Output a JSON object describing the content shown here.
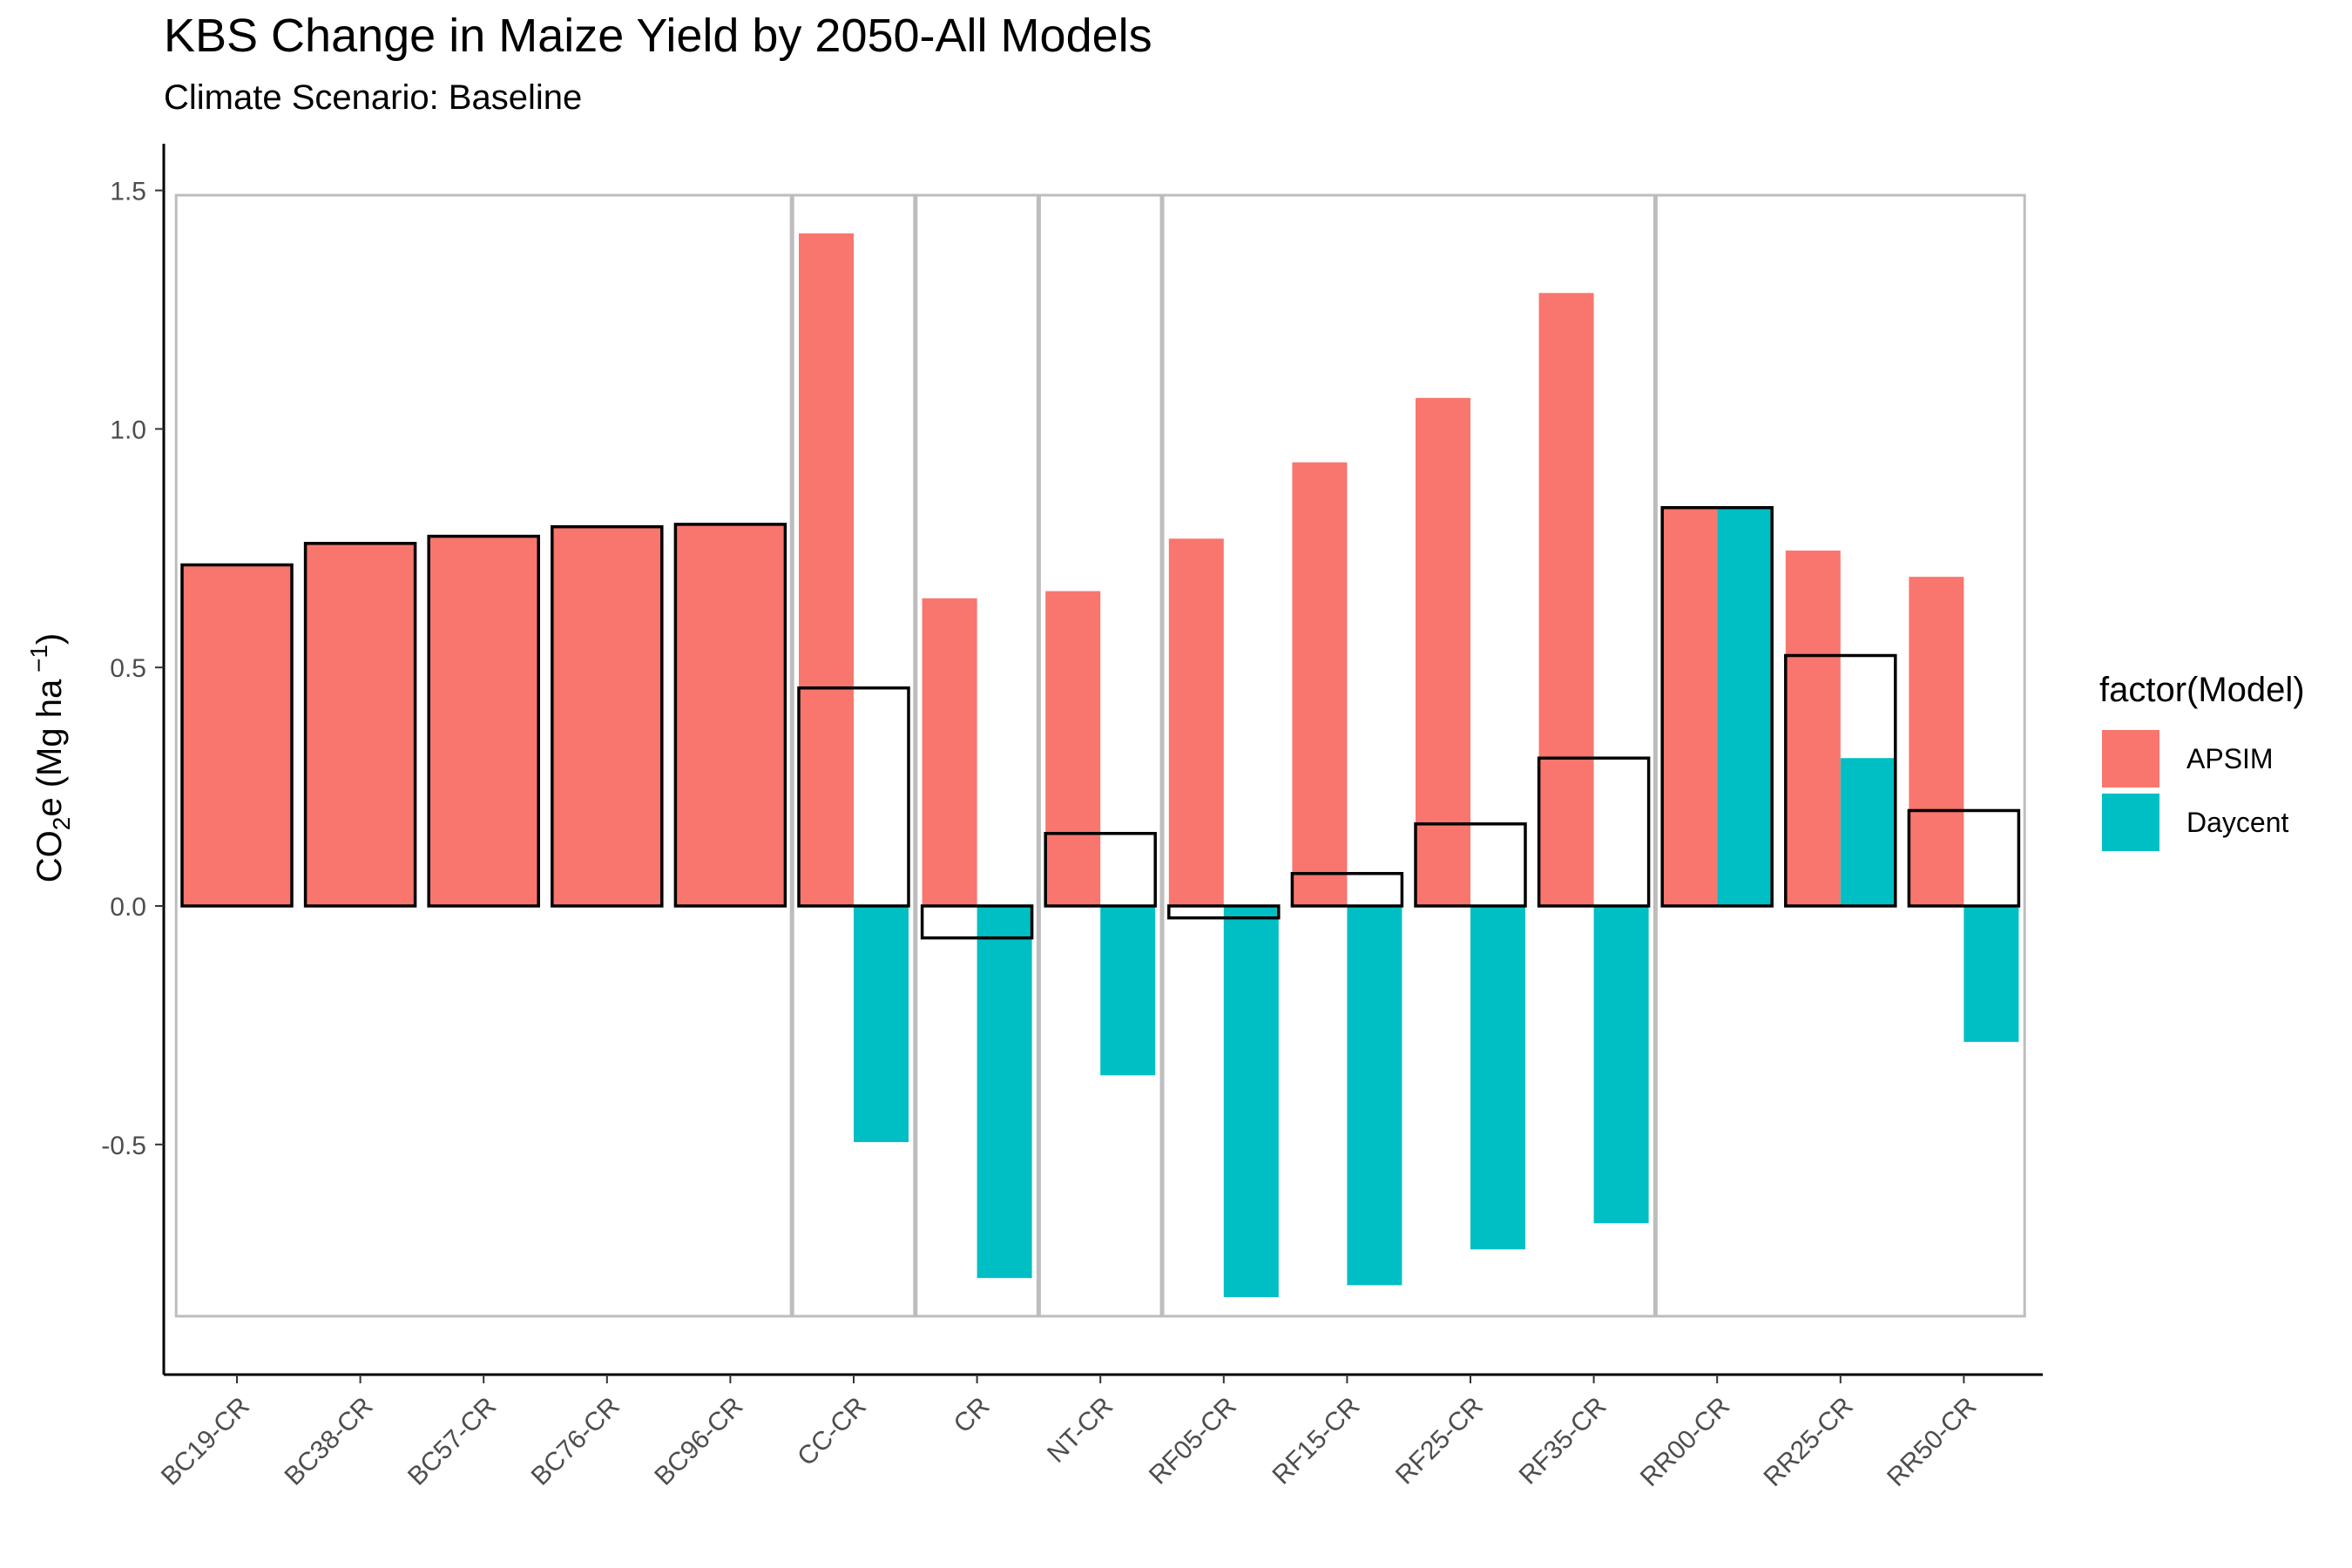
{
  "chart_data": {
    "type": "bar",
    "title": "KBS Change in Maize Yield by 2050-All Models",
    "subtitle": "Climate Scenario: Baseline",
    "ylabel": "CO₂e (Mg ha⁻¹)",
    "ylabel_parts": {
      "a": "CO",
      "sub": "2",
      "b": "e (Mg ha",
      "sup": " −1",
      "c": ")"
    },
    "xlabel": "",
    "ylim": [
      -0.97,
      1.6
    ],
    "yticks": [
      -0.5,
      0.0,
      0.5,
      1.0,
      1.5
    ],
    "ytick_labels": [
      "-0.5",
      "0.0",
      "0.5",
      "1.0",
      "1.5"
    ],
    "categories": [
      "BC19-CR",
      "BC38-CR",
      "BC57-CR",
      "BC76-CR",
      "BC96-CR",
      "CC-CR",
      "CR",
      "NT-CR",
      "RF05-CR",
      "RF15-CR",
      "RF25-CR",
      "RF35-CR",
      "RR00-CR",
      "RR25-CR",
      "RR50-CR"
    ],
    "series": [
      {
        "name": "APSIM",
        "color": "#F8766D",
        "values": [
          0.715,
          0.76,
          0.775,
          0.795,
          0.8,
          1.41,
          0.645,
          0.66,
          0.77,
          0.93,
          1.065,
          1.285,
          0.835,
          0.745,
          0.69
        ]
      },
      {
        "name": "Daycent",
        "color": "#00BFC4",
        "values": [
          null,
          null,
          null,
          null,
          null,
          -0.495,
          -0.78,
          -0.355,
          -0.82,
          -0.795,
          -0.72,
          -0.665,
          0.835,
          0.31,
          -0.285
        ]
      }
    ],
    "mean_outline": {
      "values": [
        0.715,
        0.76,
        0.775,
        0.795,
        0.8,
        0.457,
        -0.067,
        0.152,
        -0.025,
        0.068,
        0.172,
        0.31,
        0.835,
        0.525,
        0.2
      ]
    },
    "group_boxes": [
      [
        0,
        4
      ],
      [
        5,
        5
      ],
      [
        6,
        6
      ],
      [
        7,
        7
      ],
      [
        8,
        11
      ],
      [
        12,
        14
      ]
    ],
    "legend": {
      "title": "factor(Model)",
      "position": "right",
      "entries": [
        "APSIM",
        "Daycent"
      ]
    },
    "grid": false
  }
}
